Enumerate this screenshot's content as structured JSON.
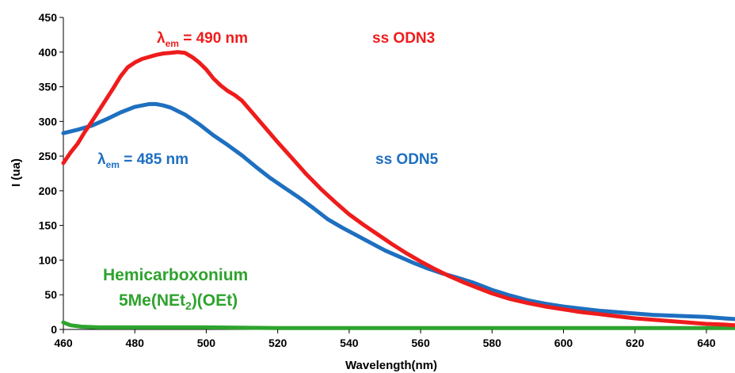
{
  "chart_data": {
    "type": "line",
    "title": "",
    "xlabel": "Wavelength(nm)",
    "ylabel": "I (ua)",
    "xlim": [
      460,
      648
    ],
    "ylim": [
      0,
      450
    ],
    "x_ticks": [
      460,
      480,
      500,
      520,
      540,
      560,
      580,
      600,
      620,
      640
    ],
    "y_ticks": [
      0,
      50,
      100,
      150,
      200,
      250,
      300,
      350,
      400,
      450
    ],
    "grid": false,
    "legend": "none",
    "series": [
      {
        "name": "ss ODN3",
        "color": "#ee1c1c",
        "x": [
          460,
          462,
          464,
          466,
          468,
          470,
          472,
          474,
          476,
          478,
          480,
          482,
          484,
          486,
          488,
          490,
          492,
          494,
          496,
          498,
          500,
          502,
          504,
          506,
          508,
          510,
          512,
          514,
          516,
          518,
          520,
          524,
          528,
          532,
          536,
          540,
          544,
          548,
          552,
          556,
          560,
          564,
          568,
          572,
          576,
          580,
          585,
          590,
          595,
          600,
          605,
          610,
          615,
          620,
          625,
          630,
          635,
          640,
          645,
          648
        ],
        "y": [
          240,
          255,
          268,
          285,
          300,
          316,
          332,
          348,
          365,
          378,
          385,
          390,
          393,
          396,
          398,
          399,
          400,
          399,
          393,
          385,
          375,
          362,
          352,
          344,
          338,
          330,
          318,
          306,
          294,
          282,
          270,
          247,
          224,
          203,
          184,
          166,
          151,
          137,
          123,
          110,
          98,
          87,
          77,
          68,
          60,
          52,
          44,
          38,
          33,
          29,
          25,
          22,
          19,
          16,
          14,
          12,
          10,
          8,
          7,
          6
        ]
      },
      {
        "name": "ss ODN5",
        "color": "#1e6fc0",
        "x": [
          460,
          464,
          468,
          472,
          476,
          480,
          484,
          486,
          488,
          490,
          494,
          498,
          502,
          506,
          510,
          514,
          518,
          522,
          526,
          530,
          534,
          538,
          542,
          546,
          550,
          554,
          558,
          562,
          566,
          570,
          575,
          580,
          585,
          590,
          595,
          600,
          605,
          610,
          615,
          620,
          625,
          630,
          635,
          640,
          645,
          648
        ],
        "y": [
          283,
          288,
          294,
          303,
          313,
          321,
          325,
          325,
          323,
          320,
          310,
          296,
          280,
          266,
          251,
          234,
          218,
          204,
          190,
          175,
          159,
          147,
          136,
          125,
          114,
          105,
          96,
          88,
          81,
          75,
          67,
          57,
          49,
          42,
          37,
          33,
          30,
          27,
          25,
          23,
          21,
          20,
          19,
          18,
          16,
          15
        ]
      },
      {
        "name": "Hemicarboxonium 5Me(NEt2)(OEt)",
        "color": "#2ea32e",
        "x": [
          460,
          462,
          465,
          470,
          480,
          500,
          520,
          540,
          560,
          580,
          600,
          620,
          640,
          648
        ],
        "y": [
          10,
          6,
          4,
          3,
          3,
          3,
          2,
          2,
          2,
          2,
          2,
          2,
          2,
          2
        ]
      }
    ],
    "annotations": [
      {
        "id": "odn3_lambda",
        "prefix": "λ",
        "sub": "em",
        "text": " = 490 nm",
        "color": "#ee1c1c"
      },
      {
        "id": "odn3_label",
        "text": "ss ODN3",
        "color": "#ee1c1c"
      },
      {
        "id": "odn5_lambda",
        "prefix": "λ",
        "sub": "em",
        "text": " = 485 nm",
        "color": "#1e6fc0"
      },
      {
        "id": "odn5_label",
        "text": "ss ODN5",
        "color": "#1e6fc0"
      },
      {
        "id": "hemi_label1",
        "text": "Hemicarboxonium",
        "color": "#2ea32e"
      },
      {
        "id": "hemi_label2",
        "prefix": "5Me(NEt",
        "sub": "2",
        "text": ")(OEt)",
        "color": "#2ea32e"
      }
    ]
  }
}
